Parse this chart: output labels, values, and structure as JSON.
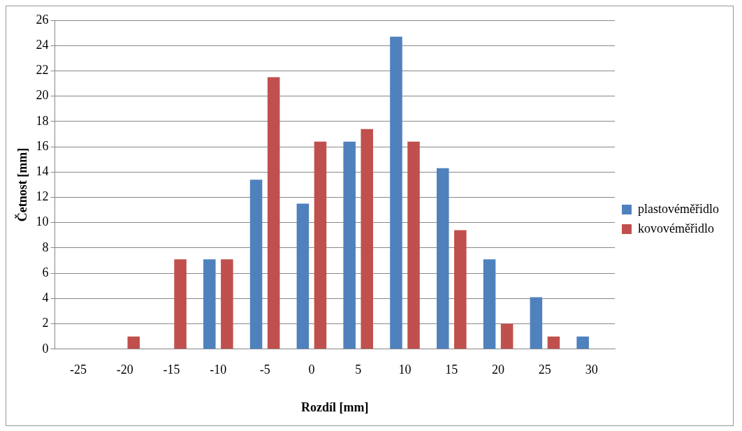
{
  "chart_data": {
    "type": "bar",
    "xlabel": "Rozdíl [mm]",
    "ylabel": "Četnost [mm]",
    "categories": [
      "-25",
      "-20",
      "-15",
      "-10",
      "-5",
      "0",
      "5",
      "10",
      "15",
      "20",
      "25",
      "30"
    ],
    "series": [
      {
        "name": "plastovéměřidlo",
        "color": "#4f81bd",
        "values": [
          0,
          0,
          0,
          7.1,
          13.4,
          11.5,
          16.4,
          24.7,
          14.3,
          7.1,
          4.1,
          1.0
        ]
      },
      {
        "name": "kovovéměřidlo",
        "color": "#c0504d",
        "values": [
          0,
          1.0,
          7.1,
          7.1,
          21.5,
          16.4,
          17.4,
          16.4,
          9.4,
          2.0,
          1.0,
          0
        ]
      }
    ],
    "ylim": [
      0,
      26
    ],
    "yticks": [
      0,
      2,
      4,
      6,
      8,
      10,
      12,
      14,
      16,
      18,
      20,
      22,
      24,
      26
    ],
    "grid": "y",
    "legend": "right"
  }
}
